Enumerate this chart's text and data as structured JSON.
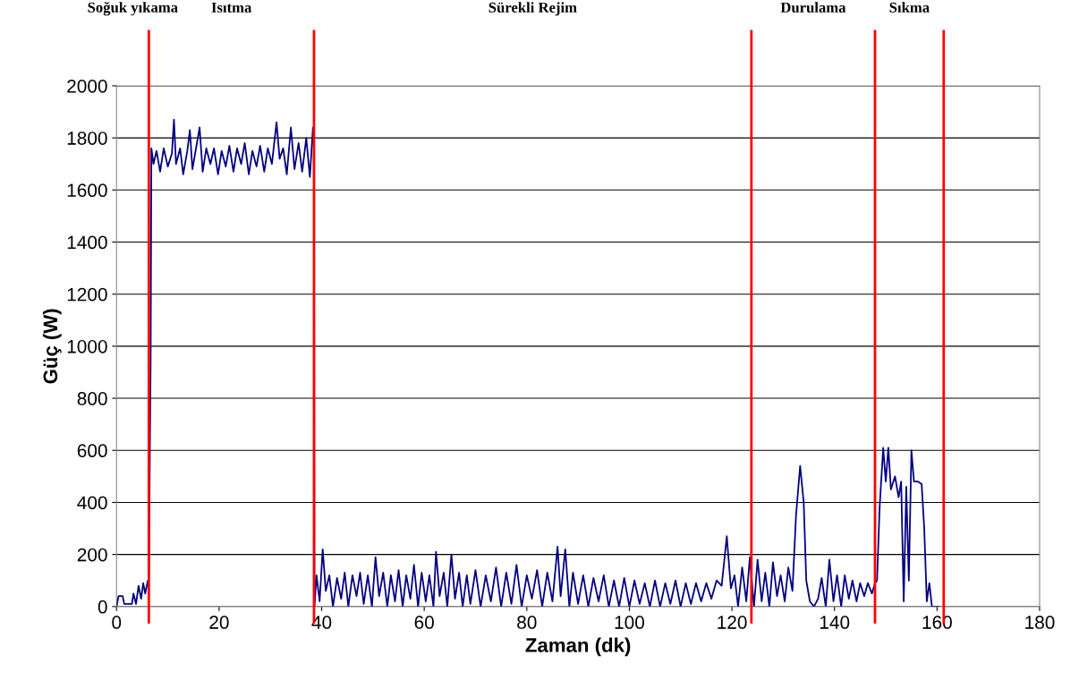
{
  "chart_data": {
    "type": "line",
    "xlabel": "Zaman (dk)",
    "ylabel": "Güç (W)",
    "xlim": [
      0,
      180
    ],
    "xticks": [
      0,
      20,
      40,
      60,
      80,
      100,
      120,
      140,
      160,
      180
    ],
    "ylim": [
      0,
      2000
    ],
    "yticks": [
      0,
      200,
      400,
      600,
      800,
      1000,
      1200,
      1400,
      1600,
      1800,
      2000
    ],
    "grid": "y",
    "marker": "none",
    "line_style": "solid",
    "ref_lines": [
      {
        "axis": "x",
        "value": 6.3,
        "color": "#ff0000"
      },
      {
        "axis": "x",
        "value": 38.5,
        "color": "#ff0000"
      },
      {
        "axis": "x",
        "value": 123.8,
        "color": "#ff0000"
      },
      {
        "axis": "x",
        "value": 147.9,
        "color": "#ff0000"
      },
      {
        "axis": "x",
        "value": 161.3,
        "color": "#ff0000"
      }
    ],
    "annotations": [
      "Soğuk yıkama",
      "Isıtma",
      "Sürekli Rejim",
      "Durulama",
      "Sıkma"
    ],
    "series": [
      {
        "color": "#000080",
        "x": [
          0,
          0.4,
          1.2,
          1.5,
          3,
          3.3,
          3.8,
          4.3,
          4.8,
          5.2,
          5.6,
          6.1,
          6.3,
          6.65,
          6.8,
          7.2,
          7.8,
          8.5,
          9.2,
          10,
          10.8,
          11.2,
          11.6,
          12.4,
          13,
          13.8,
          14.3,
          14.8,
          15.5,
          16.2,
          16.8,
          17.5,
          18.3,
          19,
          19.8,
          20.5,
          21.3,
          22,
          22.8,
          23.5,
          24.3,
          25,
          25.8,
          26.5,
          27.3,
          28,
          28.8,
          29.5,
          30.3,
          31.2,
          31.8,
          32.5,
          33.2,
          34,
          34.7,
          35.5,
          36.2,
          37,
          37.7,
          38.3,
          38.5,
          38.6,
          39,
          39.6,
          40.2,
          40.8,
          41.5,
          42.2,
          43,
          43.8,
          44.5,
          45.2,
          46,
          46.8,
          47.5,
          48.2,
          49,
          49.8,
          50.5,
          51.2,
          52,
          52.8,
          53.5,
          54.3,
          55,
          55.8,
          56.5,
          57.3,
          58,
          58.8,
          59.5,
          60.3,
          61,
          61.8,
          62.3,
          63,
          63.8,
          64.5,
          65.3,
          66,
          66.8,
          67.5,
          68.3,
          69,
          70,
          71,
          72,
          73,
          74,
          75,
          76,
          77,
          78,
          79,
          80,
          81,
          82,
          83,
          84,
          85,
          86,
          86.6,
          87.5,
          88.3,
          89,
          90,
          91,
          92,
          93,
          94,
          95,
          96,
          97,
          98,
          99,
          100,
          101,
          102,
          103,
          104,
          105,
          106,
          107,
          108,
          109,
          110,
          111,
          112,
          113,
          114,
          115,
          116,
          117,
          118,
          119,
          119.8,
          120.5,
          121.2,
          122,
          122.8,
          123.5,
          124.3,
          125,
          125.8,
          126.5,
          127.3,
          128,
          128.8,
          129.5,
          130.3,
          131,
          131.8,
          132.5,
          133.3,
          134,
          134.5,
          135.2,
          136,
          136.8,
          137.5,
          138.3,
          139,
          139.8,
          140.5,
          141.3,
          142,
          142.8,
          143.5,
          144.3,
          145,
          145.8,
          146.5,
          147.3,
          147.9,
          148.3,
          148.8,
          149.5,
          150,
          150.5,
          151,
          151.8,
          152.5,
          153,
          153.5,
          154,
          154.5,
          155,
          155.5,
          156.3,
          157,
          157.5,
          158,
          158.5,
          159,
          160,
          160.3
        ],
        "values": [
          0,
          40,
          40,
          10,
          10,
          50,
          10,
          80,
          30,
          90,
          50,
          100,
          100,
          940,
          1760,
          1700,
          1750,
          1670,
          1760,
          1690,
          1740,
          1870,
          1700,
          1760,
          1660,
          1750,
          1830,
          1680,
          1760,
          1840,
          1670,
          1760,
          1700,
          1760,
          1660,
          1750,
          1690,
          1770,
          1670,
          1760,
          1700,
          1780,
          1660,
          1750,
          1690,
          1770,
          1670,
          1760,
          1700,
          1860,
          1720,
          1760,
          1660,
          1840,
          1680,
          1780,
          1670,
          1800,
          1650,
          1840,
          1760,
          0,
          120,
          20,
          220,
          60,
          120,
          0,
          110,
          30,
          130,
          0,
          120,
          40,
          130,
          10,
          120,
          0,
          190,
          40,
          130,
          0,
          120,
          20,
          140,
          0,
          120,
          30,
          160,
          0,
          130,
          20,
          120,
          0,
          210,
          40,
          130,
          0,
          200,
          30,
          130,
          0,
          120,
          10,
          140,
          0,
          120,
          20,
          150,
          0,
          130,
          10,
          160,
          0,
          120,
          30,
          140,
          0,
          130,
          20,
          230,
          40,
          220,
          0,
          130,
          10,
          120,
          0,
          110,
          20,
          120,
          0,
          100,
          0,
          110,
          0,
          100,
          10,
          90,
          0,
          100,
          0,
          90,
          10,
          100,
          0,
          90,
          10,
          90,
          20,
          90,
          30,
          100,
          80,
          270,
          70,
          120,
          0,
          150,
          20,
          190,
          0,
          180,
          20,
          130,
          0,
          170,
          40,
          120,
          20,
          150,
          60,
          350,
          540,
          400,
          100,
          20,
          0,
          30,
          110,
          0,
          180,
          20,
          120,
          0,
          120,
          30,
          100,
          20,
          90,
          40,
          90,
          50,
          90,
          100,
          380,
          610,
          480,
          610,
          450,
          500,
          420,
          480,
          20,
          460,
          100,
          600,
          480,
          480,
          470,
          300,
          20,
          90,
          0,
          0,
          0
        ]
      }
    ]
  }
}
